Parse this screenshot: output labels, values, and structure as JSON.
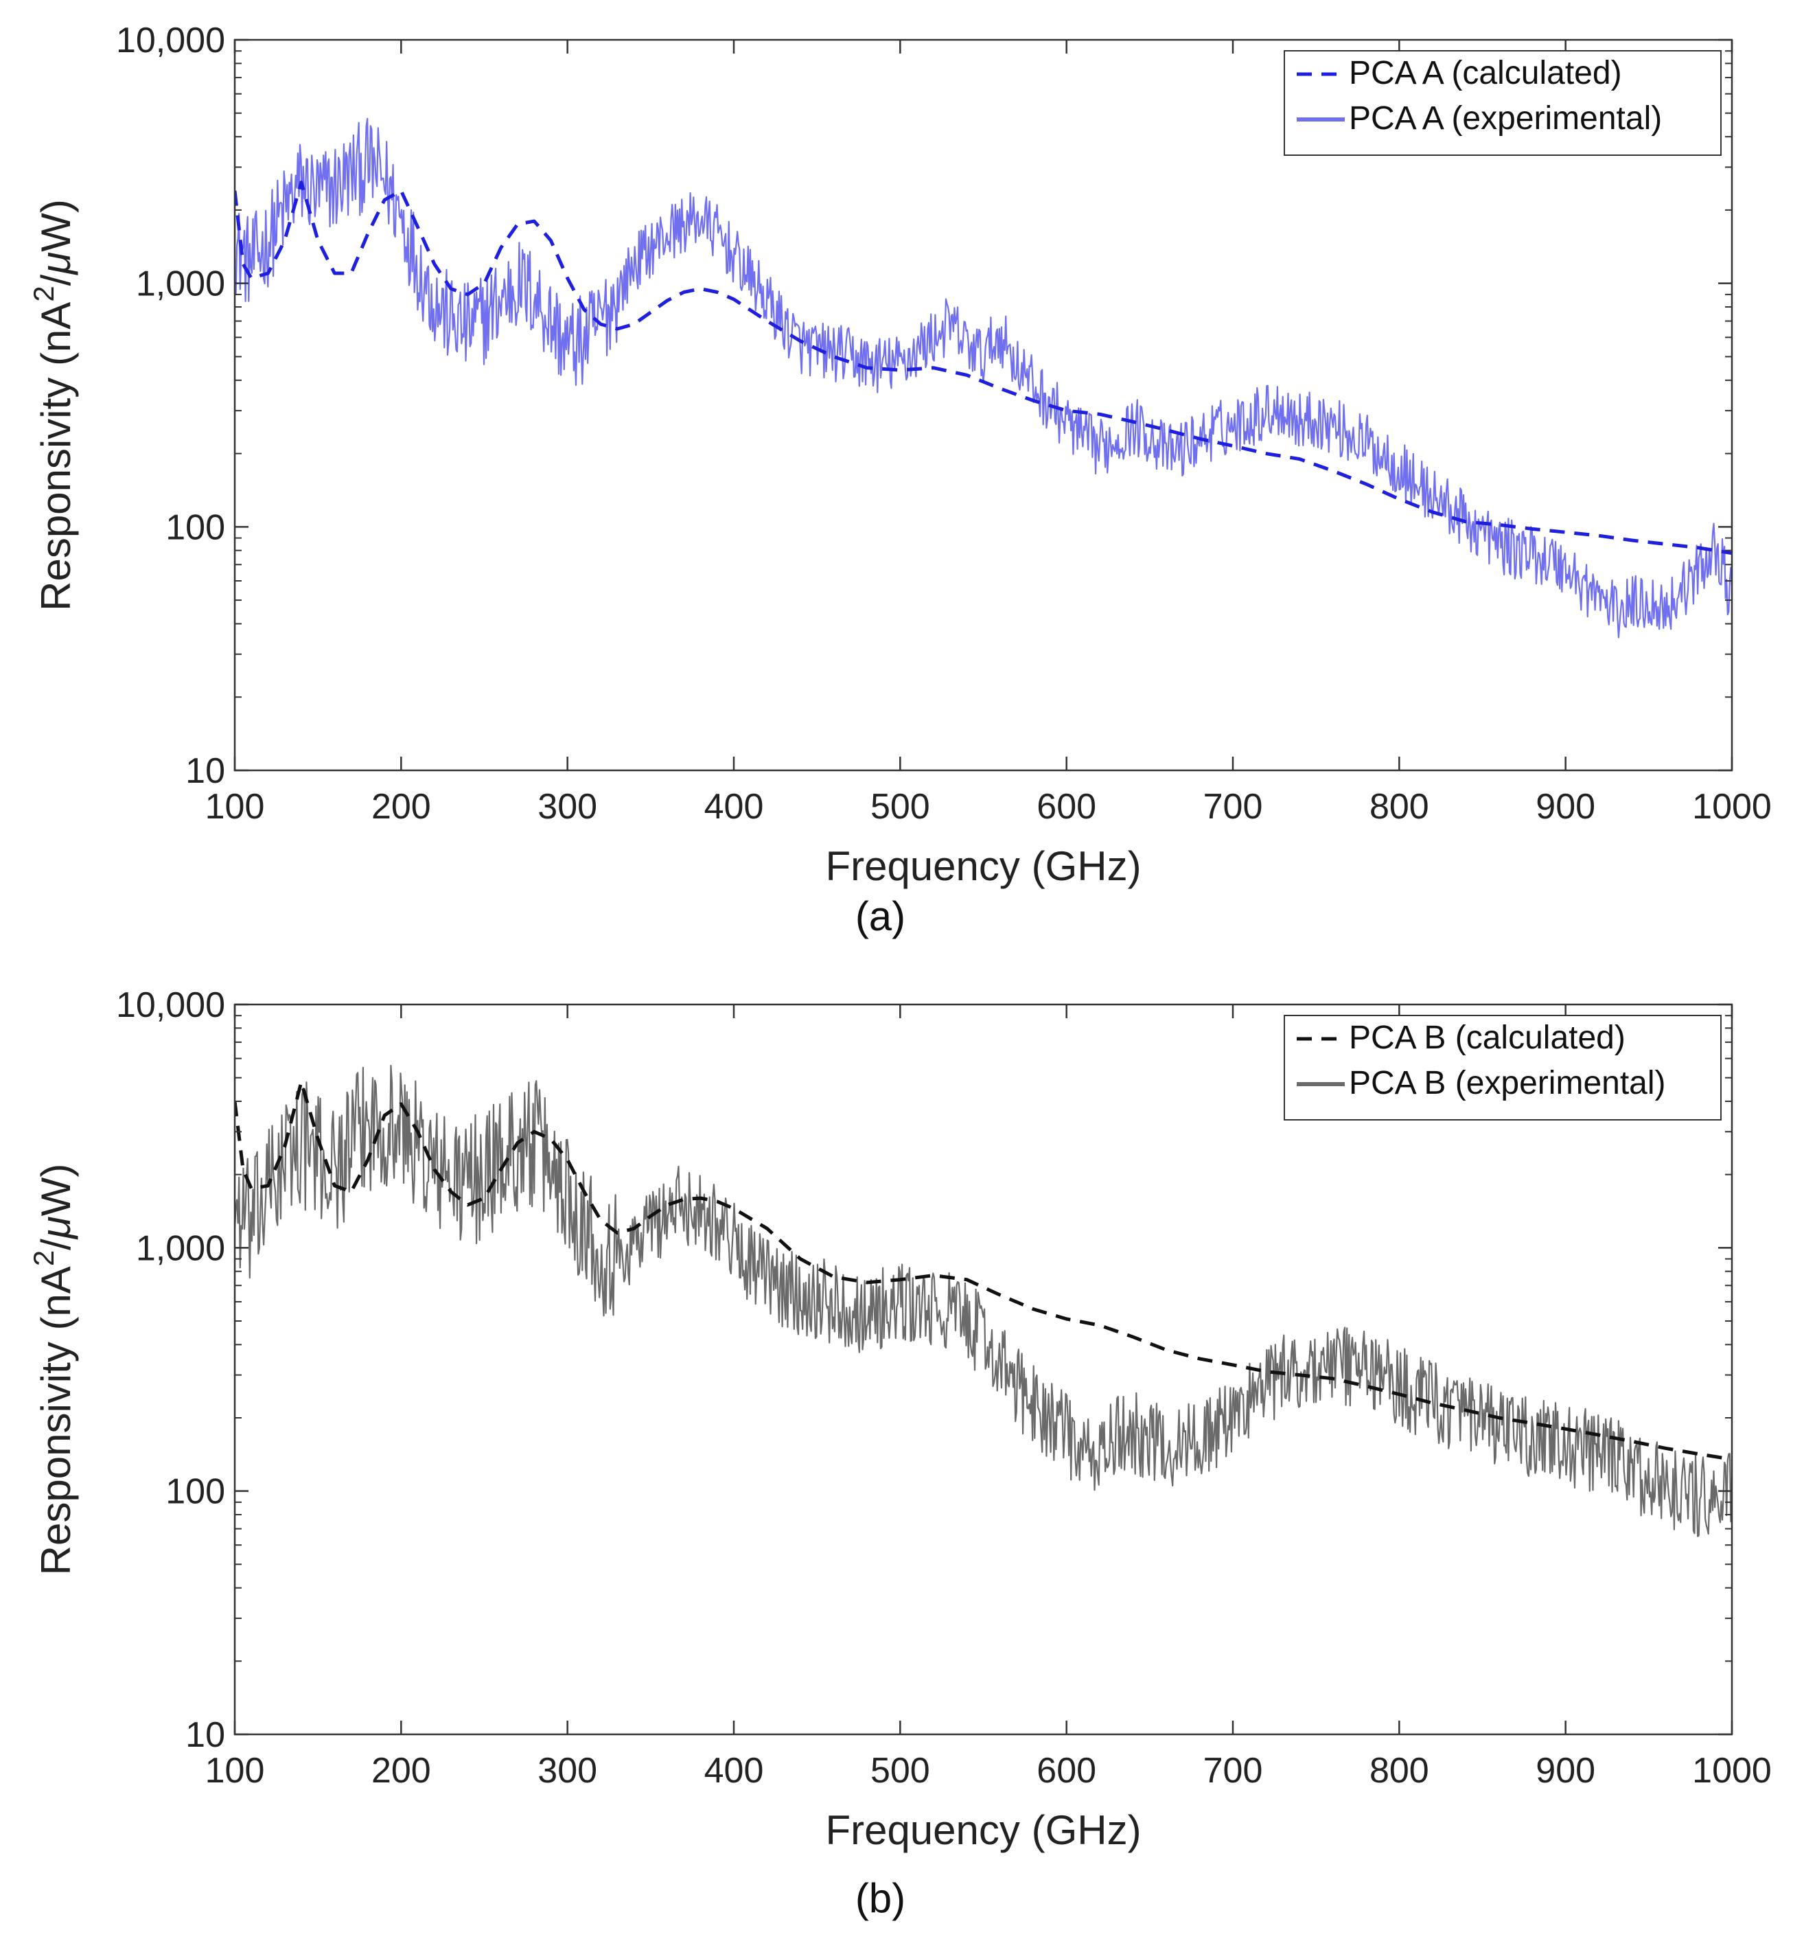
{
  "chart_data": [
    {
      "type": "line",
      "panel_label": "(a)",
      "xlabel": "Frequency (GHz)",
      "ylabel": "Responsivity (nA²/μW)",
      "ylabel_parts": {
        "pre": "Responsivity (nA",
        "sup": "2",
        "post": "/",
        "mu": "μ",
        "tail": "W)"
      },
      "xlim": [
        100,
        1000
      ],
      "ylim": [
        10,
        10000
      ],
      "yscale": "log",
      "xticks": [
        100,
        200,
        300,
        400,
        500,
        600,
        700,
        800,
        900,
        1000
      ],
      "xtick_labels": [
        "100",
        "200",
        "300",
        "400",
        "500",
        "600",
        "700",
        "800",
        "900",
        "1000"
      ],
      "yticks": [
        10,
        100,
        1000,
        10000
      ],
      "ytick_labels": [
        "10",
        "100",
        "1,000",
        "10,000"
      ],
      "grid": false,
      "legend_position": "top-right",
      "series": [
        {
          "name": "PCA A (calculated)",
          "style": "dashed",
          "color": "#1f1fe0",
          "x": [
            100,
            105,
            110,
            120,
            130,
            140,
            150,
            160,
            170,
            180,
            190,
            200,
            210,
            220,
            230,
            240,
            250,
            260,
            270,
            280,
            290,
            300,
            310,
            320,
            330,
            340,
            350,
            360,
            370,
            380,
            390,
            400,
            420,
            440,
            460,
            480,
            500,
            520,
            540,
            560,
            580,
            600,
            620,
            640,
            660,
            680,
            700,
            720,
            740,
            760,
            780,
            800,
            820,
            840,
            860,
            880,
            900,
            920,
            940,
            960,
            980,
            1000
          ],
          "y": [
            2400,
            1200,
            1050,
            1100,
            1500,
            2600,
            1500,
            1100,
            1100,
            1600,
            2200,
            2400,
            1700,
            1200,
            950,
            900,
            1000,
            1400,
            1750,
            1800,
            1500,
            1050,
            780,
            680,
            650,
            680,
            760,
            850,
            920,
            950,
            920,
            860,
            700,
            580,
            500,
            450,
            440,
            450,
            420,
            370,
            330,
            300,
            290,
            270,
            250,
            230,
            215,
            200,
            190,
            170,
            150,
            130,
            115,
            105,
            102,
            98,
            95,
            92,
            88,
            85,
            82,
            78
          ]
        },
        {
          "name": "PCA A (experimental)",
          "style": "solid",
          "color": "#6f6ff0",
          "x": [
            100,
            110,
            120,
            130,
            140,
            150,
            160,
            170,
            180,
            190,
            200,
            210,
            220,
            230,
            240,
            250,
            260,
            270,
            280,
            290,
            300,
            310,
            320,
            330,
            340,
            350,
            360,
            370,
            380,
            390,
            400,
            410,
            420,
            430,
            440,
            450,
            460,
            470,
            480,
            490,
            500,
            510,
            520,
            530,
            540,
            550,
            560,
            570,
            580,
            590,
            600,
            610,
            620,
            630,
            640,
            650,
            660,
            670,
            680,
            690,
            700,
            710,
            720,
            730,
            740,
            750,
            760,
            770,
            780,
            790,
            800,
            810,
            820,
            830,
            840,
            850,
            860,
            870,
            880,
            890,
            900,
            910,
            920,
            930,
            940,
            950,
            960,
            970,
            980,
            990,
            1000
          ],
          "y": [
            1400,
            1200,
            1500,
            2000,
            2600,
            2300,
            2500,
            2800,
            3100,
            2700,
            1900,
            1200,
            850,
            700,
            650,
            720,
            850,
            1000,
            900,
            700,
            550,
            580,
            700,
            900,
            1200,
            1400,
            1600,
            1750,
            1850,
            1600,
            1300,
            1050,
            850,
            680,
            560,
            530,
            520,
            500,
            470,
            460,
            470,
            530,
            600,
            680,
            560,
            500,
            620,
            470,
            380,
            320,
            270,
            230,
            210,
            230,
            260,
            240,
            200,
            210,
            230,
            250,
            260,
            280,
            300,
            310,
            270,
            280,
            260,
            240,
            220,
            200,
            175,
            150,
            135,
            120,
            105,
            95,
            85,
            80,
            78,
            73,
            68,
            58,
            52,
            45,
            48,
            50,
            46,
            55,
            65,
            85,
            50
          ]
        }
      ]
    },
    {
      "type": "line",
      "panel_label": "(b)",
      "xlabel": "Frequency (GHz)",
      "ylabel": "Responsivity (nA²/μW)",
      "ylabel_parts": {
        "pre": "Responsivity (nA",
        "sup": "2",
        "post": "/",
        "mu": "μ",
        "tail": "W)"
      },
      "xlim": [
        100,
        1000
      ],
      "ylim": [
        10,
        10000
      ],
      "yscale": "log",
      "xticks": [
        100,
        200,
        300,
        400,
        500,
        600,
        700,
        800,
        900,
        1000
      ],
      "xtick_labels": [
        "100",
        "200",
        "300",
        "400",
        "500",
        "600",
        "700",
        "800",
        "900",
        "1000"
      ],
      "yticks": [
        10,
        100,
        1000,
        10000
      ],
      "ytick_labels": [
        "10",
        "100",
        "1,000",
        "10,000"
      ],
      "grid": false,
      "legend_position": "top-right",
      "series": [
        {
          "name": "PCA B (calculated)",
          "style": "dashed",
          "color": "#111111",
          "x": [
            100,
            105,
            110,
            120,
            130,
            140,
            150,
            160,
            170,
            180,
            190,
            200,
            210,
            220,
            230,
            240,
            250,
            260,
            270,
            280,
            290,
            300,
            310,
            320,
            330,
            340,
            350,
            360,
            370,
            380,
            390,
            400,
            420,
            440,
            460,
            480,
            500,
            520,
            540,
            560,
            580,
            600,
            620,
            640,
            660,
            680,
            700,
            720,
            740,
            760,
            780,
            800,
            820,
            840,
            860,
            880,
            900,
            920,
            940,
            960,
            980,
            1000
          ],
          "y": [
            4000,
            2100,
            1750,
            1800,
            2600,
            4800,
            2800,
            1800,
            1700,
            2300,
            3500,
            3900,
            3000,
            2100,
            1700,
            1500,
            1600,
            2100,
            2700,
            3000,
            2800,
            2300,
            1700,
            1300,
            1150,
            1200,
            1350,
            1500,
            1580,
            1600,
            1550,
            1450,
            1200,
            900,
            760,
            720,
            740,
            770,
            740,
            640,
            560,
            510,
            480,
            430,
            380,
            350,
            330,
            310,
            300,
            290,
            270,
            250,
            230,
            215,
            200,
            190,
            180,
            170,
            160,
            150,
            142,
            135
          ]
        },
        {
          "name": "PCA B (experimental)",
          "style": "solid",
          "color": "#6a6a6a",
          "x": [
            100,
            110,
            120,
            130,
            140,
            150,
            160,
            170,
            180,
            190,
            200,
            210,
            220,
            230,
            240,
            250,
            260,
            270,
            280,
            290,
            300,
            310,
            320,
            330,
            340,
            350,
            360,
            370,
            380,
            390,
            400,
            410,
            420,
            430,
            440,
            450,
            460,
            470,
            480,
            490,
            500,
            510,
            520,
            530,
            540,
            550,
            560,
            570,
            580,
            590,
            600,
            610,
            620,
            630,
            640,
            650,
            660,
            670,
            680,
            690,
            700,
            710,
            720,
            730,
            740,
            750,
            760,
            770,
            780,
            790,
            800,
            810,
            820,
            830,
            840,
            850,
            860,
            870,
            880,
            890,
            900,
            910,
            920,
            930,
            940,
            950,
            960,
            970,
            980,
            990,
            1000
          ],
          "y": [
            1500,
            1200,
            1700,
            2300,
            2800,
            2300,
            2100,
            2600,
            3200,
            3300,
            3100,
            2600,
            2100,
            1900,
            1850,
            2000,
            2300,
            2600,
            2700,
            2200,
            1700,
            1300,
            1000,
            900,
            1050,
            1250,
            1400,
            1500,
            1450,
            1300,
            1050,
            870,
            750,
            680,
            640,
            620,
            590,
            560,
            540,
            560,
            580,
            570,
            540,
            550,
            500,
            430,
            330,
            270,
            230,
            200,
            175,
            135,
            140,
            165,
            175,
            160,
            150,
            155,
            165,
            180,
            200,
            240,
            270,
            300,
            310,
            320,
            330,
            330,
            320,
            300,
            270,
            250,
            240,
            220,
            200,
            190,
            180,
            170,
            165,
            160,
            155,
            150,
            140,
            135,
            125,
            110,
            105,
            100,
            95,
            90,
            100
          ]
        }
      ]
    }
  ]
}
